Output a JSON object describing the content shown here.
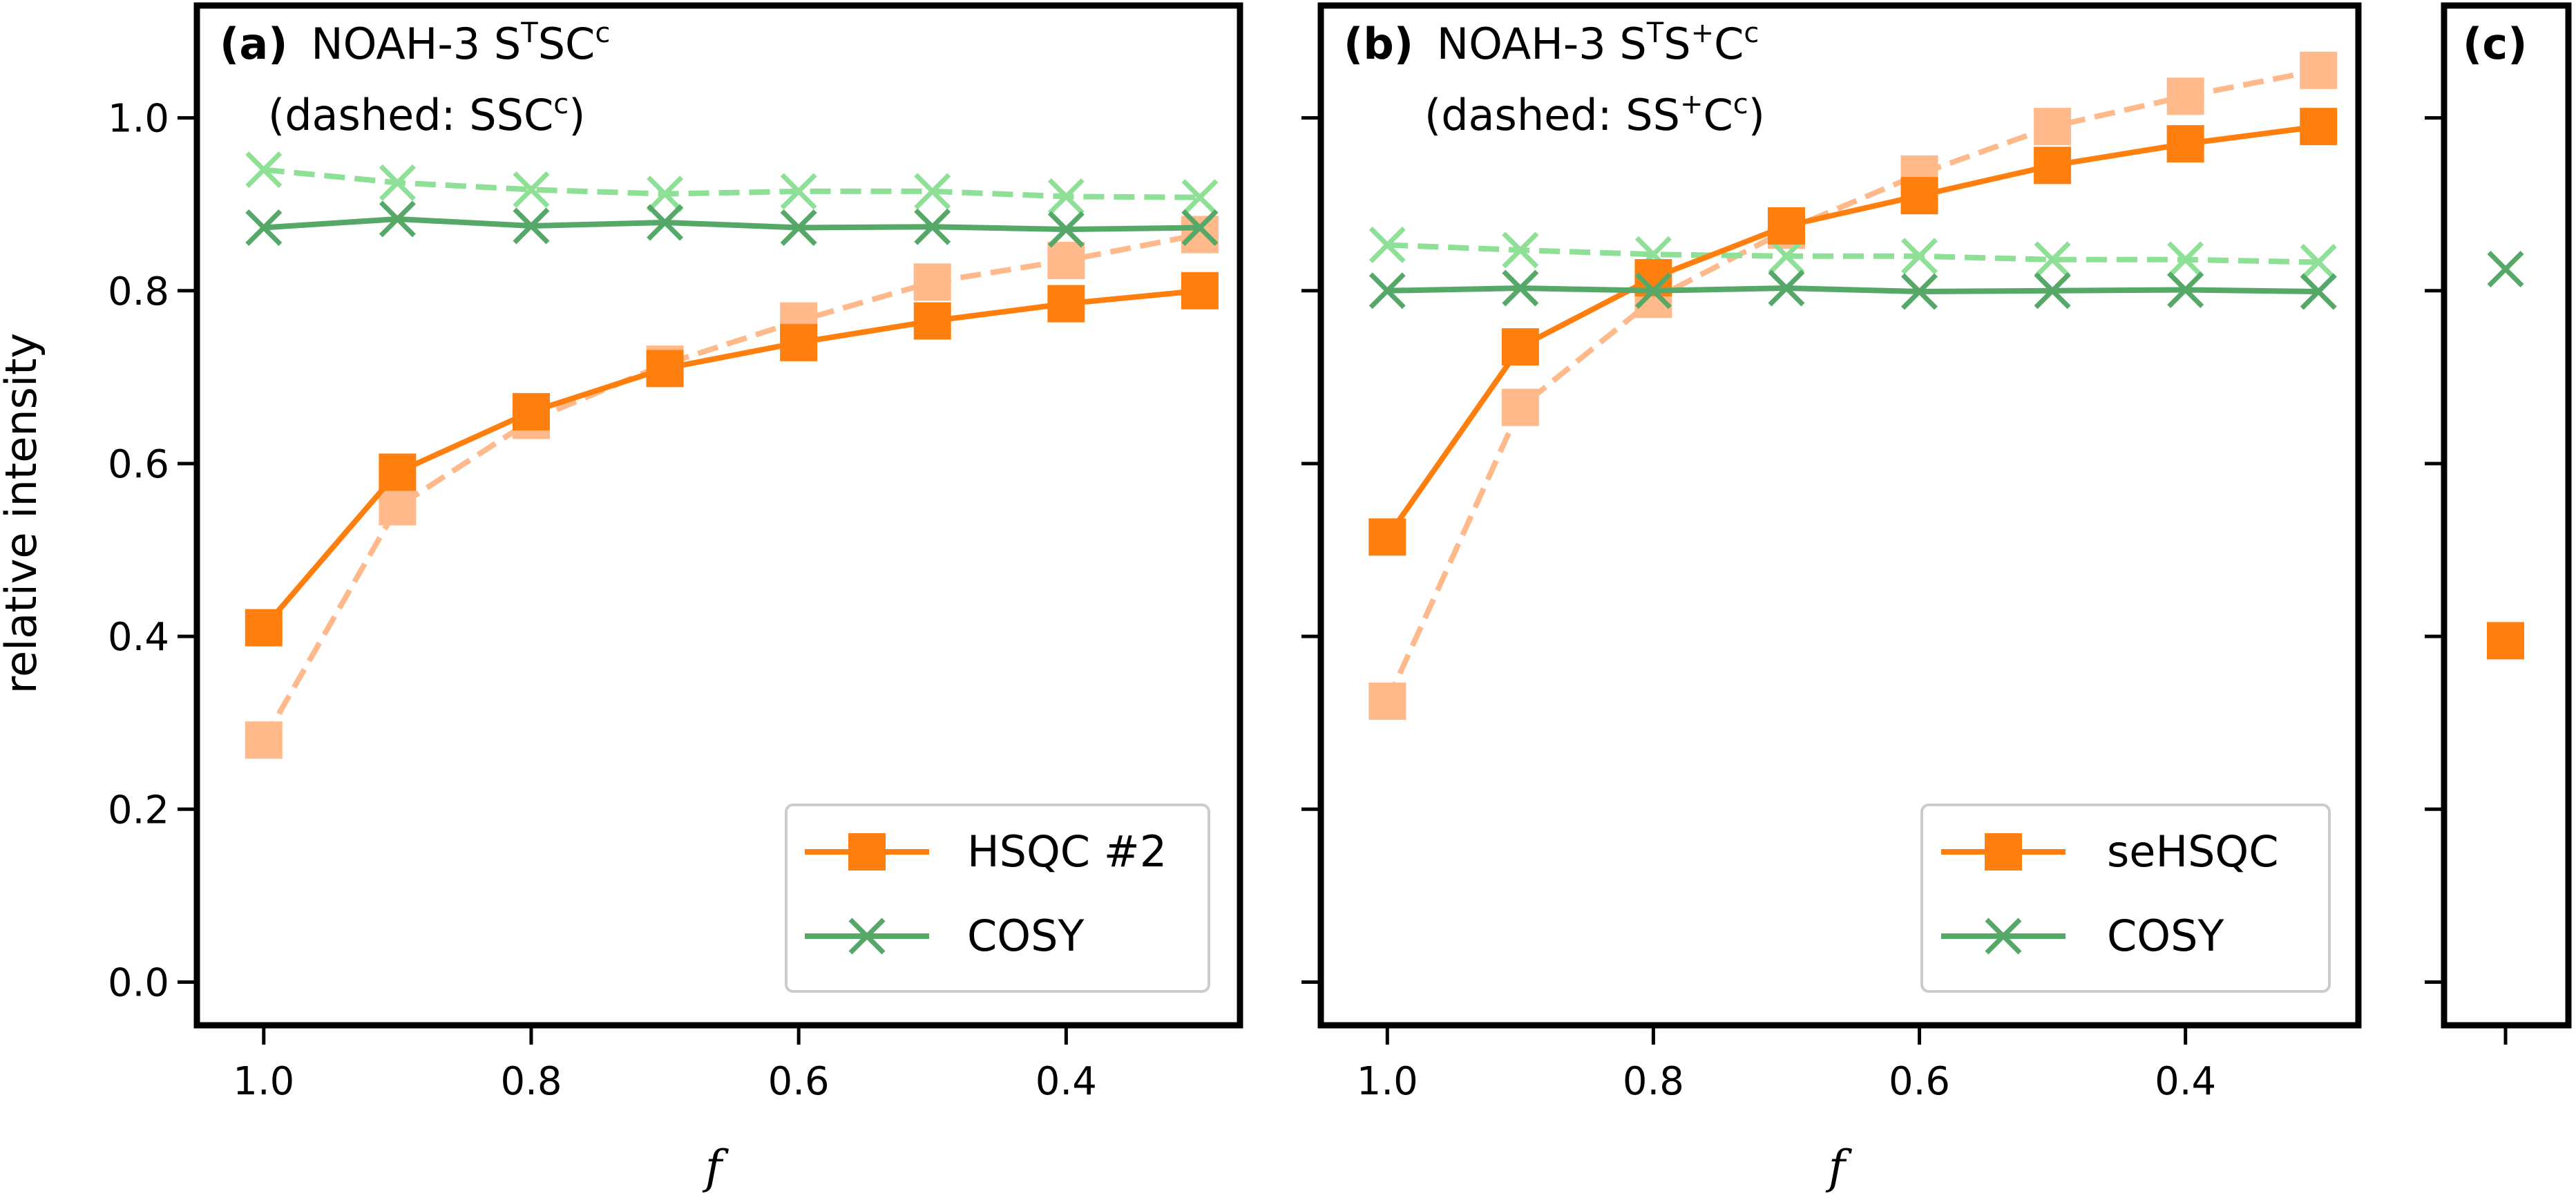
{
  "colors": {
    "hsqc_solid": "#ff7f0e",
    "hsqc_dashed": "#ffb98a",
    "cosy_solid": "#55a868",
    "cosy_dashed": "#8ee096"
  },
  "ylabel": "relative intensity",
  "chart_data": [
    {
      "type": "line",
      "panel_label": "(a)",
      "title_line1": "NOAH-3 S",
      "title_sup1": "T",
      "title_mid1": "SC",
      "title_sup2": "c",
      "title_line2_pre": "(dashed: SSC",
      "title_line2_sup": "c",
      "title_line2_post": ")",
      "xlabel": "f",
      "x": [
        1.0,
        0.9,
        0.8,
        0.7,
        0.6,
        0.5,
        0.4,
        0.3
      ],
      "xlim": [
        1.05,
        0.27
      ],
      "xticks": [
        "1.0",
        "0.8",
        "0.6",
        "0.4"
      ],
      "xtick_values": [
        1.0,
        0.8,
        0.6,
        0.4
      ],
      "ylim": [
        -0.05,
        1.13
      ],
      "yticks": [
        "0.0",
        "0.2",
        "0.4",
        "0.6",
        "0.8",
        "1.0"
      ],
      "ytick_values": [
        0.0,
        0.2,
        0.4,
        0.6,
        0.8,
        1.0
      ],
      "legend_position": "lower right",
      "legend": [
        "HSQC #2",
        "COSY"
      ],
      "series": [
        {
          "name": "HSQC #2",
          "style": "solid",
          "marker": "square",
          "values": [
            0.41,
            0.59,
            0.66,
            0.71,
            0.74,
            0.765,
            0.785,
            0.8
          ]
        },
        {
          "name": "COSY",
          "style": "solid",
          "marker": "x",
          "values": [
            0.873,
            0.883,
            0.875,
            0.879,
            0.873,
            0.874,
            0.871,
            0.873
          ]
        },
        {
          "name": "HSQC #2 (dashed: SSCc)",
          "style": "dashed",
          "marker": "square",
          "values": [
            0.28,
            0.55,
            0.65,
            0.715,
            0.765,
            0.81,
            0.835,
            0.865
          ]
        },
        {
          "name": "COSY (dashed: SSCc)",
          "style": "dashed",
          "marker": "x",
          "values": [
            0.94,
            0.925,
            0.917,
            0.912,
            0.915,
            0.915,
            0.909,
            0.908
          ]
        }
      ]
    },
    {
      "type": "line",
      "panel_label": "(b)",
      "title_line1": "NOAH-3 S",
      "title_sup1": "T",
      "title_mid1": "S",
      "title_sup2": "+",
      "title_mid2": "C",
      "title_sup3": "c",
      "title_line2_pre": "(dashed: SS",
      "title_line2_sup": "+",
      "title_line2_mid": "C",
      "title_line2_sup2": "c",
      "title_line2_post": ")",
      "xlabel": "f",
      "x": [
        1.0,
        0.9,
        0.8,
        0.7,
        0.6,
        0.5,
        0.4,
        0.3
      ],
      "xlim": [
        1.05,
        0.27
      ],
      "xticks": [
        "1.0",
        "0.8",
        "0.6",
        "0.4"
      ],
      "xtick_values": [
        1.0,
        0.8,
        0.6,
        0.4
      ],
      "ylim": [
        -0.05,
        1.13
      ],
      "legend_position": "lower right",
      "legend": [
        "seHSQC",
        "COSY"
      ],
      "series": [
        {
          "name": "seHSQC",
          "style": "solid",
          "marker": "square",
          "values": [
            0.515,
            0.735,
            0.815,
            0.875,
            0.91,
            0.945,
            0.97,
            0.99
          ]
        },
        {
          "name": "COSY",
          "style": "solid",
          "marker": "x",
          "values": [
            0.8,
            0.803,
            0.8,
            0.803,
            0.799,
            0.8,
            0.801,
            0.799
          ]
        },
        {
          "name": "seHSQC (dashed: SS+Cc)",
          "style": "dashed",
          "marker": "square",
          "values": [
            0.325,
            0.665,
            0.79,
            0.87,
            0.935,
            0.99,
            1.025,
            1.055
          ]
        },
        {
          "name": "COSY (dashed: SS+Cc)",
          "style": "dashed",
          "marker": "x",
          "values": [
            0.853,
            0.847,
            0.842,
            0.84,
            0.84,
            0.836,
            0.836,
            0.833
          ]
        }
      ]
    },
    {
      "type": "scatter",
      "panel_label": "(c)",
      "ylim": [
        -0.05,
        1.13
      ],
      "points": [
        {
          "series": "COSY",
          "marker": "x",
          "value": 0.825
        },
        {
          "series": "HSQC",
          "marker": "square",
          "value": 0.395
        }
      ]
    }
  ]
}
